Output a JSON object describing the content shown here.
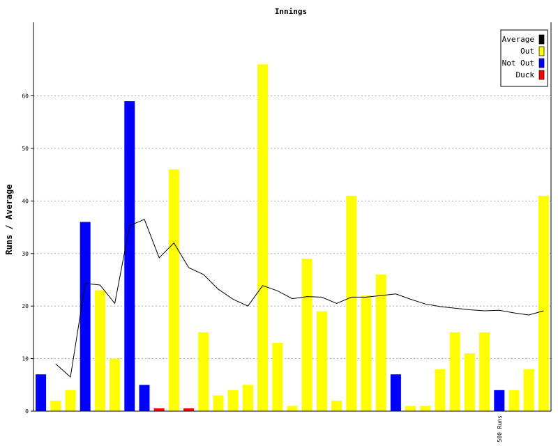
{
  "chart_data": {
    "type": "bar",
    "title": "Innings",
    "ylabel": "Runs / Average",
    "ylim": [
      0,
      74
    ],
    "yticks": [
      0,
      10,
      20,
      30,
      40,
      50,
      60
    ],
    "grid": true,
    "legend_position": "top-right",
    "colors": {
      "Average": "#000000",
      "Out": "#ffff00",
      "Not Out": "#0000ff",
      "Duck": "#ff0000"
    },
    "legend": [
      "Average",
      "Out",
      "Not Out",
      "Duck"
    ],
    "innings": [
      {
        "runs": 7,
        "status": "Not Out"
      },
      {
        "runs": 2,
        "status": "Out"
      },
      {
        "runs": 4,
        "status": "Out"
      },
      {
        "runs": 36,
        "status": "Not Out"
      },
      {
        "runs": 23,
        "status": "Out"
      },
      {
        "runs": 10,
        "status": "Out"
      },
      {
        "runs": 59,
        "status": "Not Out"
      },
      {
        "runs": 5,
        "status": "Not Out"
      },
      {
        "runs": 0,
        "status": "Duck"
      },
      {
        "runs": 46,
        "status": "Out"
      },
      {
        "runs": 0,
        "status": "Duck"
      },
      {
        "runs": 15,
        "status": "Out"
      },
      {
        "runs": 3,
        "status": "Out"
      },
      {
        "runs": 4,
        "status": "Out"
      },
      {
        "runs": 5,
        "status": "Out"
      },
      {
        "runs": 66,
        "status": "Out"
      },
      {
        "runs": 13,
        "status": "Out"
      },
      {
        "runs": 1,
        "status": "Out"
      },
      {
        "runs": 29,
        "status": "Out"
      },
      {
        "runs": 19,
        "status": "Out"
      },
      {
        "runs": 2,
        "status": "Out"
      },
      {
        "runs": 41,
        "status": "Out"
      },
      {
        "runs": 22,
        "status": "Out"
      },
      {
        "runs": 26,
        "status": "Out"
      },
      {
        "runs": 7,
        "status": "Not Out"
      },
      {
        "runs": 1,
        "status": "Out"
      },
      {
        "runs": 1,
        "status": "Out"
      },
      {
        "runs": 8,
        "status": "Out"
      },
      {
        "runs": 15,
        "status": "Out"
      },
      {
        "runs": 11,
        "status": "Out"
      },
      {
        "runs": 15,
        "status": "Out"
      },
      {
        "runs": 4,
        "status": "Not Out"
      },
      {
        "runs": 4,
        "status": "Out"
      },
      {
        "runs": 8,
        "status": "Out"
      },
      {
        "runs": 41,
        "status": "Out"
      }
    ],
    "average": [
      null,
      9,
      6.5,
      24.3,
      24,
      20.5,
      35.3,
      36.5,
      29.2,
      32,
      27.3,
      26,
      23.2,
      21.3,
      20,
      23.9,
      22.9,
      21.4,
      21.8,
      21.7,
      20.5,
      21.7,
      21.7,
      22,
      22.3,
      21.3,
      20.4,
      19.9,
      19.6,
      19.3,
      19.1,
      19.2,
      18.7,
      18.3,
      19.1
    ],
    "annotations": [
      {
        "text": "500 Runs",
        "innings_index": 31
      }
    ]
  }
}
